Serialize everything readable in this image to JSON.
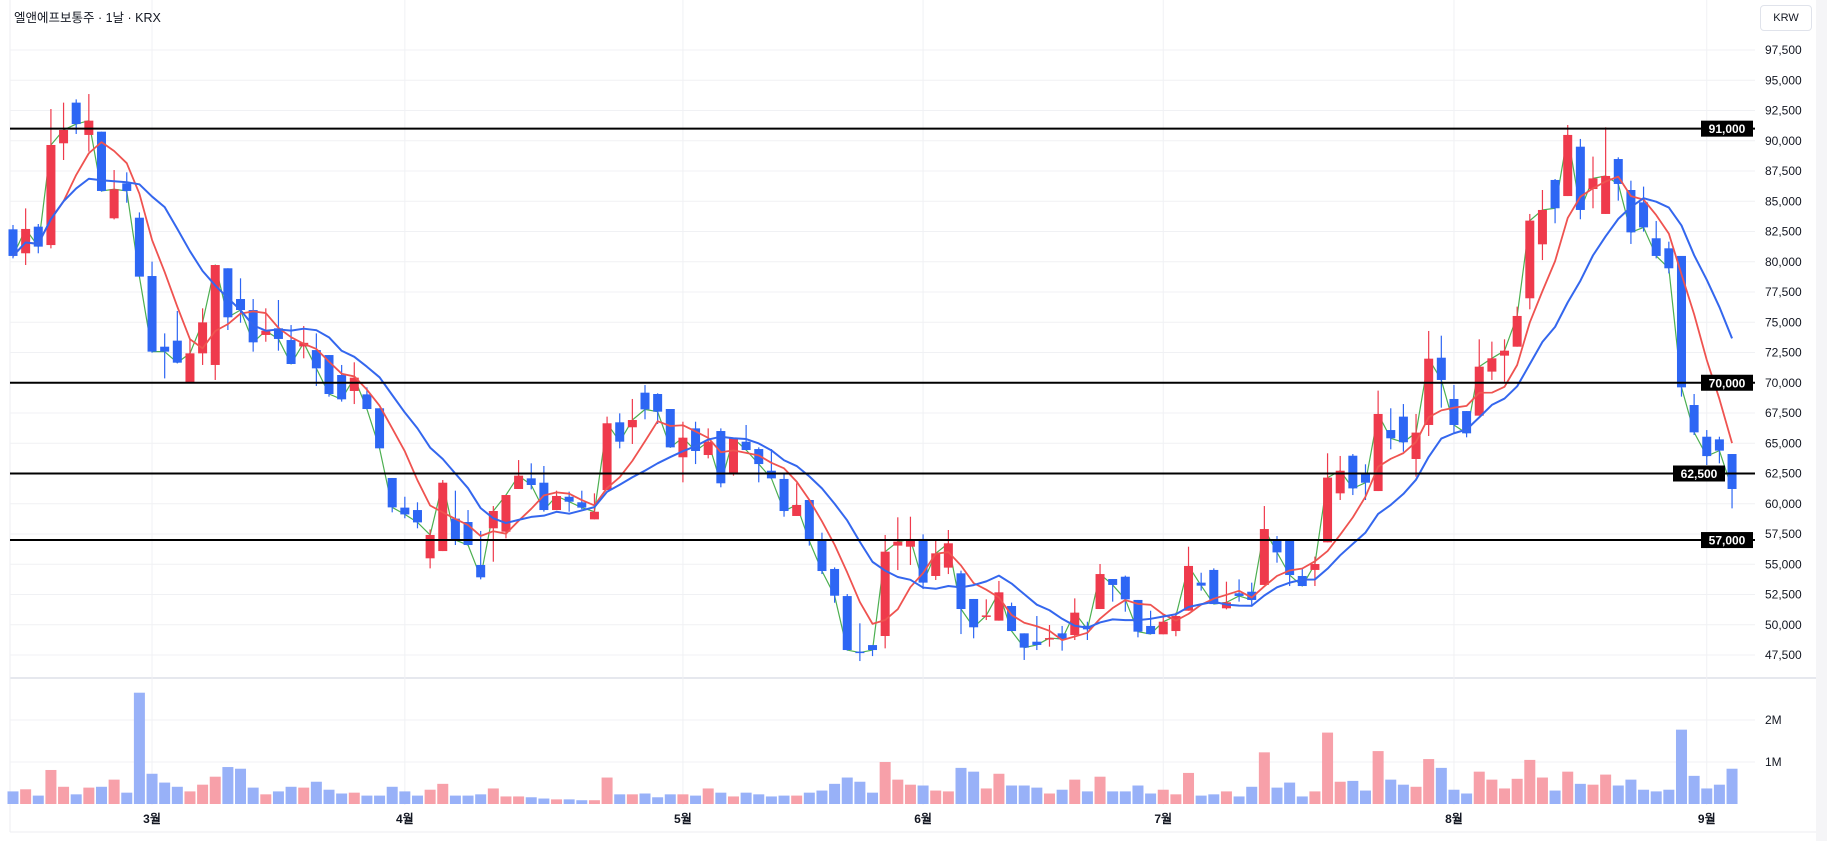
{
  "header": {
    "title": "엘앤에프보통주 · 1날 · KRX",
    "currency_button": "KRW"
  },
  "colors": {
    "up": "#ef3a4c",
    "down": "#2d66f4",
    "volume_up": "#f7a0a9",
    "volume_down": "#98b1f8",
    "ma5": "#ef5350",
    "ma10": "#3467ee",
    "close_line": "#4caf50",
    "hline": "#000000",
    "grid": "#f0f1f4"
  },
  "chart_data": {
    "type": "candlestick",
    "title": "엘앤에프보통주 · 1날 · KRX",
    "currency": "KRW",
    "ylim": [
      45000,
      100000
    ],
    "y_ticks": [
      47500,
      50000,
      52500,
      55000,
      57500,
      60000,
      62500,
      65000,
      67500,
      70000,
      72500,
      75000,
      77500,
      80000,
      82500,
      85000,
      87500,
      90000,
      92500,
      95000,
      97500
    ],
    "y_tick_labels": [
      "47,500",
      "50,000",
      "52,500",
      "55,000",
      "57,500",
      "60,000",
      "62,500",
      "65,000",
      "67,500",
      "70,000",
      "72,500",
      "75,000",
      "77,500",
      "80,000",
      "82,500",
      "85,000",
      "87,500",
      "90,000",
      "92,500",
      "95,000",
      "97,500"
    ],
    "horizontal_lines": [
      {
        "value": 91000,
        "label": "91,000"
      },
      {
        "value": 70000,
        "label": "70,000"
      },
      {
        "value": 62500,
        "label": "62,500"
      },
      {
        "value": 57000,
        "label": "57,000"
      }
    ],
    "month_labels": [
      {
        "label": "3월",
        "index": 11
      },
      {
        "label": "4월",
        "index": 31
      },
      {
        "label": "5월",
        "index": 53
      },
      {
        "label": "6월",
        "index": 72
      },
      {
        "label": "7월",
        "index": 91
      },
      {
        "label": "8월",
        "index": 114
      },
      {
        "label": "9월",
        "index": 134
      }
    ],
    "moving_averages": [
      {
        "name": "MA5",
        "period": 5
      },
      {
        "name": "MA10",
        "period": 10
      }
    ],
    "volume_ticks": [
      {
        "value": 2,
        "label": "2M"
      },
      {
        "value": 1,
        "label": "1M"
      }
    ],
    "ohlc": [
      [
        82680,
        83040,
        80280,
        80480
      ],
      [
        80700,
        84410,
        79730,
        82710
      ],
      [
        82900,
        83120,
        80700,
        81250
      ],
      [
        81380,
        92620,
        81110,
        89650
      ],
      [
        89790,
        93150,
        88410,
        90890
      ],
      [
        93150,
        93420,
        90560,
        91380
      ],
      [
        90480,
        93860,
        89100,
        91660
      ],
      [
        90750,
        90750,
        85790,
        85850
      ],
      [
        83590,
        87580,
        83500,
        85990
      ],
      [
        86480,
        87390,
        84880,
        85850
      ],
      [
        83640,
        84080,
        78770,
        78770
      ],
      [
        78820,
        80010,
        72480,
        72570
      ],
      [
        72980,
        74080,
        70360,
        72570
      ],
      [
        73480,
        75930,
        71600,
        71660
      ],
      [
        70010,
        73670,
        69950,
        72430
      ],
      [
        72430,
        76150,
        71470,
        74990
      ],
      [
        71470,
        79730,
        70230,
        79730
      ],
      [
        79460,
        79460,
        74360,
        75410
      ],
      [
        76920,
        78630,
        74960,
        76010
      ],
      [
        76010,
        76920,
        72570,
        73340
      ],
      [
        73950,
        76150,
        73390,
        74300
      ],
      [
        74500,
        76840,
        72650,
        73620
      ],
      [
        73530,
        74770,
        71550,
        71550
      ],
      [
        73000,
        74690,
        72020,
        73300
      ],
      [
        72700,
        74080,
        69730,
        71190
      ],
      [
        72290,
        72290,
        68850,
        69070
      ],
      [
        70640,
        71470,
        68440,
        68630
      ],
      [
        69320,
        71690,
        68240,
        70420
      ],
      [
        69040,
        69620,
        67800,
        67830
      ],
      [
        67890,
        67890,
        64580,
        64580
      ],
      [
        62130,
        62130,
        59290,
        59700
      ],
      [
        59680,
        60580,
        58800,
        59120
      ],
      [
        59480,
        60120,
        57970,
        58460
      ],
      [
        55490,
        57880,
        54660,
        57420
      ],
      [
        56090,
        61960,
        56090,
        61740
      ],
      [
        58770,
        61080,
        56590,
        57000
      ],
      [
        58490,
        59480,
        56590,
        56590
      ],
      [
        54940,
        57750,
        53750,
        53920
      ],
      [
        57970,
        59810,
        55210,
        59400
      ],
      [
        57690,
        60720,
        57140,
        60720
      ],
      [
        61220,
        63610,
        61220,
        62320
      ],
      [
        62100,
        63340,
        61190,
        61550
      ],
      [
        61740,
        63120,
        59350,
        59480
      ],
      [
        59480,
        61080,
        59480,
        60640
      ],
      [
        60580,
        61000,
        59340,
        60170
      ],
      [
        60120,
        61080,
        59540,
        59680
      ],
      [
        58710,
        60860,
        58710,
        59340
      ],
      [
        61130,
        67200,
        61130,
        66650
      ],
      [
        66730,
        67470,
        64580,
        65130
      ],
      [
        66320,
        68660,
        64940,
        66920
      ],
      [
        69180,
        69810,
        66980,
        67800
      ],
      [
        69070,
        69130,
        66590,
        67610
      ],
      [
        67830,
        67830,
        64660,
        64660
      ],
      [
        63840,
        66780,
        61770,
        65460
      ],
      [
        66230,
        66780,
        63280,
        64360
      ],
      [
        64030,
        66230,
        63750,
        65130
      ],
      [
        66010,
        66230,
        61360,
        61690
      ],
      [
        62510,
        65410,
        62320,
        65410
      ],
      [
        65130,
        66510,
        64440,
        64440
      ],
      [
        64520,
        64660,
        61770,
        63280
      ],
      [
        62730,
        64520,
        62050,
        62100
      ],
      [
        62050,
        62460,
        58930,
        59400
      ],
      [
        58990,
        61690,
        58990,
        59900
      ],
      [
        60310,
        60310,
        56540,
        56920
      ],
      [
        56950,
        57610,
        54190,
        54440
      ],
      [
        54610,
        54740,
        51820,
        52400
      ],
      [
        52370,
        52540,
        47860,
        47910
      ],
      [
        47780,
        50120,
        47000,
        47700
      ],
      [
        48320,
        48320,
        47410,
        47910
      ],
      [
        49070,
        57420,
        48050,
        56040
      ],
      [
        56540,
        58880,
        54520,
        56870
      ],
      [
        56450,
        58930,
        54940,
        57060
      ],
      [
        57090,
        57470,
        52950,
        53480
      ],
      [
        54030,
        56950,
        53700,
        55900
      ],
      [
        54720,
        57830,
        54190,
        56730
      ],
      [
        54250,
        54470,
        49230,
        51300
      ],
      [
        52130,
        52130,
        48880,
        49790
      ],
      [
        50720,
        52100,
        50390,
        50770
      ],
      [
        50340,
        53620,
        50340,
        52680
      ],
      [
        51550,
        51830,
        49480,
        49480
      ],
      [
        49290,
        49290,
        47090,
        48110
      ],
      [
        48600,
        50720,
        47910,
        48330
      ],
      [
        48820,
        49980,
        48190,
        48900
      ],
      [
        49290,
        49900,
        47860,
        48820
      ],
      [
        49150,
        52180,
        48740,
        51000
      ],
      [
        49920,
        50250,
        48740,
        49620
      ],
      [
        51300,
        55020,
        51300,
        54190
      ],
      [
        53780,
        53780,
        51910,
        53290
      ],
      [
        53970,
        54060,
        51080,
        52100
      ],
      [
        52050,
        52050,
        48960,
        49430
      ],
      [
        49900,
        51160,
        49230,
        49230
      ],
      [
        49210,
        50860,
        49210,
        50250
      ],
      [
        49480,
        51000,
        49050,
        50720
      ],
      [
        51160,
        56450,
        51160,
        54860
      ],
      [
        53480,
        54300,
        52820,
        53230
      ],
      [
        54530,
        54660,
        51710,
        51710
      ],
      [
        51360,
        53560,
        51270,
        51850
      ],
      [
        52600,
        53750,
        51910,
        52380
      ],
      [
        52730,
        53480,
        51490,
        52050
      ],
      [
        53290,
        59810,
        53290,
        57910
      ],
      [
        57060,
        57330,
        55130,
        55980
      ],
      [
        56950,
        56950,
        53200,
        54110
      ],
      [
        54030,
        54660,
        53200,
        53200
      ],
      [
        54530,
        55630,
        53200,
        55020
      ],
      [
        56810,
        64170,
        56810,
        62160
      ],
      [
        60860,
        63950,
        60310,
        62730
      ],
      [
        63970,
        64110,
        60720,
        61270
      ],
      [
        62510,
        63260,
        60310,
        61740
      ],
      [
        61050,
        69350,
        61050,
        67420
      ],
      [
        66090,
        67890,
        64500,
        65410
      ],
      [
        67200,
        68240,
        64300,
        65080
      ],
      [
        63700,
        67420,
        62240,
        65880
      ],
      [
        66510,
        74280,
        65600,
        71990
      ],
      [
        72070,
        73890,
        67940,
        70230
      ],
      [
        68660,
        69820,
        65820,
        66510
      ],
      [
        67660,
        67660,
        65490,
        65820
      ],
      [
        67280,
        73590,
        67280,
        71330
      ],
      [
        70920,
        73400,
        70230,
        72020
      ],
      [
        72240,
        73590,
        70090,
        72650
      ],
      [
        72980,
        76290,
        72980,
        75520
      ],
      [
        76980,
        83950,
        76070,
        83400
      ],
      [
        81440,
        85930,
        80140,
        84280
      ],
      [
        86760,
        86840,
        83180,
        84420
      ],
      [
        85430,
        91300,
        85430,
        90480
      ],
      [
        89510,
        90150,
        83510,
        84280
      ],
      [
        86010,
        88690,
        84420,
        86890
      ],
      [
        83950,
        91110,
        83950,
        87090
      ],
      [
        88490,
        88630,
        85050,
        86430
      ],
      [
        85930,
        86700,
        81470,
        82430
      ],
      [
        84910,
        86210,
        82490,
        82840
      ],
      [
        81940,
        83370,
        80280,
        80480
      ],
      [
        81110,
        81660,
        79040,
        79460
      ],
      [
        80480,
        80480,
        68850,
        69620
      ],
      [
        68160,
        69070,
        65680,
        65900
      ],
      [
        65540,
        66090,
        63200,
        63940
      ],
      [
        65320,
        65540,
        63340,
        64390
      ],
      [
        64110,
        64110,
        59620,
        61220
      ]
    ],
    "volume_millions": [
      0.3,
      0.35,
      0.2,
      0.81,
      0.41,
      0.23,
      0.39,
      0.41,
      0.58,
      0.27,
      2.65,
      0.72,
      0.51,
      0.41,
      0.3,
      0.46,
      0.65,
      0.88,
      0.84,
      0.39,
      0.23,
      0.3,
      0.41,
      0.39,
      0.53,
      0.34,
      0.25,
      0.27,
      0.2,
      0.2,
      0.41,
      0.3,
      0.2,
      0.34,
      0.48,
      0.2,
      0.2,
      0.23,
      0.37,
      0.18,
      0.18,
      0.16,
      0.13,
      0.11,
      0.11,
      0.09,
      0.09,
      0.63,
      0.23,
      0.23,
      0.25,
      0.16,
      0.23,
      0.23,
      0.2,
      0.37,
      0.27,
      0.18,
      0.27,
      0.23,
      0.18,
      0.2,
      0.2,
      0.27,
      0.32,
      0.48,
      0.63,
      0.53,
      0.27,
      1.0,
      0.58,
      0.46,
      0.44,
      0.32,
      0.3,
      0.86,
      0.77,
      0.37,
      0.72,
      0.44,
      0.44,
      0.39,
      0.25,
      0.34,
      0.58,
      0.3,
      0.65,
      0.3,
      0.3,
      0.44,
      0.25,
      0.34,
      0.23,
      0.74,
      0.2,
      0.23,
      0.3,
      0.18,
      0.41,
      1.23,
      0.39,
      0.51,
      0.18,
      0.3,
      1.7,
      0.53,
      0.55,
      0.32,
      1.26,
      0.58,
      0.46,
      0.41,
      1.07,
      0.86,
      0.34,
      0.25,
      0.77,
      0.58,
      0.37,
      0.6,
      1.05,
      0.63,
      0.32,
      0.77,
      0.48,
      0.46,
      0.7,
      0.44,
      0.58,
      0.34,
      0.3,
      0.34,
      1.77,
      0.67,
      0.37,
      0.46,
      0.84
    ]
  }
}
